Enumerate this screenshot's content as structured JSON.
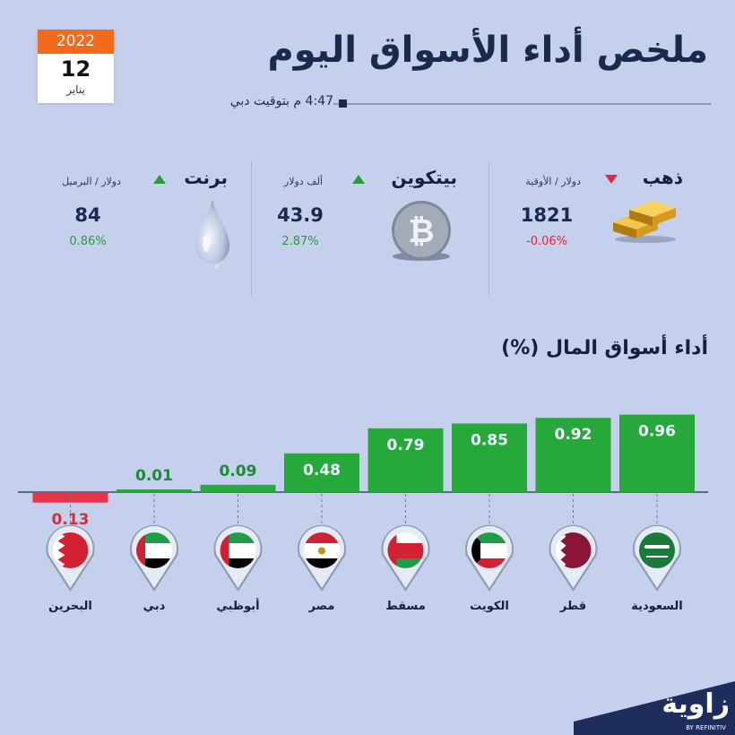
{
  "date": {
    "year": "2022",
    "day": "12",
    "month": "يناير"
  },
  "header": {
    "title": "ملخص أداء الأسواق اليوم",
    "time": "4:47 م بتوقيت دبي"
  },
  "commodities": [
    {
      "name": "ذهب",
      "unit": "دولار / الأوقية",
      "value": "1821",
      "change": "-0.06%",
      "direction": "down",
      "icon": "gold-bars-icon"
    },
    {
      "name": "بيتكوين",
      "unit": "ألف دولار",
      "value": "43.9",
      "change": "2.87%",
      "direction": "up",
      "icon": "bitcoin-icon"
    },
    {
      "name": "برنت",
      "unit": "دولار / البرميل",
      "value": "84",
      "change": "0.86%",
      "direction": "up",
      "icon": "oil-drop-icon"
    }
  ],
  "markets_title": "أداء أسواق المال (%)",
  "chart_data": {
    "type": "bar",
    "title": "أداء أسواق المال (%)",
    "categories": [
      "السعودية",
      "قطر",
      "الكويت",
      "مسقط",
      "مصر",
      "أبوظبي",
      "دبي",
      "البحرين"
    ],
    "values": [
      0.96,
      0.92,
      0.85,
      0.79,
      0.48,
      0.09,
      0.01,
      -0.13
    ],
    "value_labels": [
      "0.96",
      "0.92",
      "0.85",
      "0.79",
      "0.48",
      "0.09",
      "0.01",
      "0.13"
    ],
    "flags": [
      "saudi-flag-icon",
      "qatar-flag-icon",
      "kuwait-flag-icon",
      "oman-flag-icon",
      "egypt-flag-icon",
      "uae-flag-icon",
      "uae-flag-icon",
      "bahrain-flag-icon"
    ],
    "colors": {
      "positive": "#27a83a",
      "negative": "#e8344a"
    },
    "grid": false
  },
  "logo": {
    "name": "زاوية",
    "sub": "BY REFINITIV"
  },
  "colors": {
    "background": "#c4d0ec",
    "accent": "#f26a1b",
    "navy": "#1b2a4a"
  }
}
